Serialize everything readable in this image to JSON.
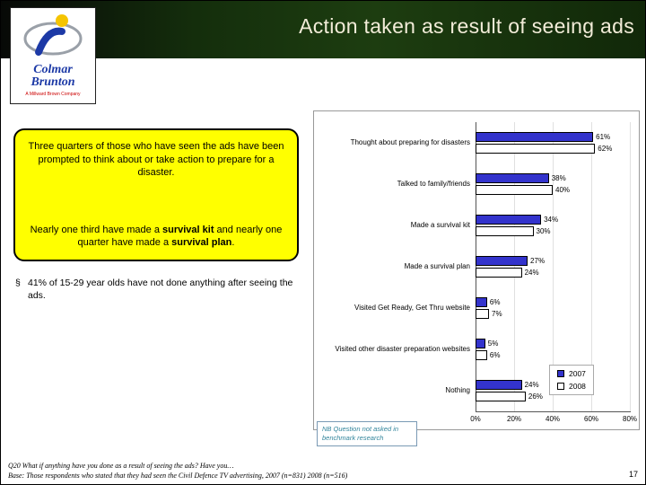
{
  "header": {
    "title": "Action taken as result of seeing ads"
  },
  "logo": {
    "name_line1": "Colmar",
    "name_line2": "Brunton",
    "tagline": "A Millward Brown Company"
  },
  "summary_box": {
    "paragraph1": "Three quarters of those who have seen the ads have been prompted to think about or take action to prepare for a disaster.",
    "paragraph2": {
      "pre": "Nearly one third have made a ",
      "bold1": "survival kit",
      "mid": " and nearly one quarter have made a ",
      "bold2": "survival plan",
      "post": "."
    }
  },
  "bullet": {
    "marker": "§",
    "text": "41% of 15-29 year olds have not done anything after seeing the ads."
  },
  "note_box": {
    "text": "NB Question not asked in benchmark research"
  },
  "footer": {
    "question": "Q20 What if anything have you done as a result of seeing the ads? Have you…",
    "base": "Base: Those respondents who stated that they had seen the Civil Defence TV advertising, 2007 (n=831) 2008 (n=516)",
    "page": "17"
  },
  "chart_data": {
    "type": "bar",
    "orientation": "horizontal",
    "title": "",
    "categories": [
      "Thought about preparing for disasters",
      "Talked to family/friends",
      "Made a survival kit",
      "Made a survival plan",
      "Visited Get Ready, Get Thru website",
      "Visited other disaster preparation websites",
      "Nothing"
    ],
    "series": [
      {
        "name": "2007",
        "color": "#3333cc",
        "values": [
          61,
          38,
          34,
          27,
          6,
          5,
          24
        ]
      },
      {
        "name": "2008",
        "color": "#ffffff",
        "values": [
          62,
          40,
          30,
          24,
          7,
          6,
          26
        ]
      }
    ],
    "value_suffix": "%",
    "xlim": [
      0,
      80
    ],
    "x_ticks": [
      0,
      20,
      40,
      60,
      80
    ],
    "tick_labels": [
      "0%",
      "20%",
      "40%",
      "60%",
      "80%"
    ],
    "grid": true,
    "legend_position": "bottom-right"
  }
}
